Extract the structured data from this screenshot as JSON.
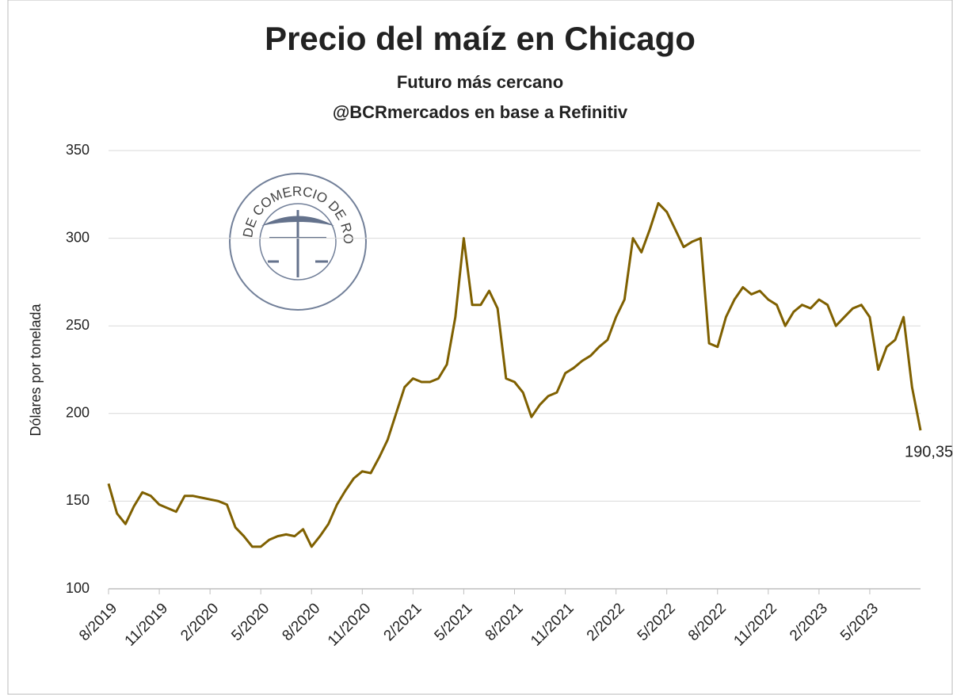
{
  "chart_data": {
    "type": "line",
    "title": "Precio del maíz en Chicago",
    "subtitle": [
      "Futuro más cercano",
      "@BCRmercados en base a Refinitiv"
    ],
    "y_label": "Dólares por tonelada",
    "logo_text": "BOLSA DE COMERCIO DE ROSARIO",
    "categories": [
      "8/2019",
      null,
      null,
      null,
      null,
      null,
      "11/2019",
      null,
      null,
      null,
      null,
      null,
      "2/2020",
      null,
      null,
      null,
      null,
      null,
      "5/2020",
      null,
      null,
      null,
      null,
      null,
      "8/2020",
      null,
      null,
      null,
      null,
      null,
      "11/2020",
      null,
      null,
      null,
      null,
      null,
      "2/2021",
      null,
      null,
      null,
      null,
      null,
      "5/2021",
      null,
      null,
      null,
      null,
      null,
      "8/2021",
      null,
      null,
      null,
      null,
      null,
      "11/2021",
      null,
      null,
      null,
      null,
      null,
      "2/2022",
      null,
      null,
      null,
      null,
      null,
      "5/2022",
      null,
      null,
      null,
      null,
      null,
      "8/2022",
      null,
      null,
      null,
      null,
      null,
      "11/2022",
      null,
      null,
      null,
      null,
      null,
      "2/2023",
      null,
      null,
      null,
      null,
      null,
      "5/2023",
      null,
      null,
      null,
      null,
      null,
      null
    ],
    "series": [
      {
        "name": "Maíz",
        "color": "#7f6000",
        "values": [
          160,
          143,
          137,
          147,
          155,
          153,
          148,
          146,
          144,
          153,
          153,
          152,
          151,
          150,
          148,
          135,
          130,
          124,
          124,
          128,
          130,
          131,
          130,
          134,
          124,
          130,
          137,
          148,
          156,
          163,
          167,
          166,
          175,
          185,
          200,
          215,
          220,
          218,
          218,
          220,
          228,
          255,
          300,
          262,
          262,
          270,
          260,
          220,
          218,
          212,
          198,
          205,
          210,
          212,
          223,
          226,
          230,
          233,
          238,
          242,
          255,
          265,
          300,
          292,
          305,
          320,
          315,
          305,
          295,
          298,
          300,
          240,
          238,
          255,
          265,
          272,
          268,
          270,
          265,
          262,
          250,
          258,
          262,
          260,
          265,
          262,
          250,
          255,
          260,
          262,
          255,
          225,
          238,
          242,
          255,
          215,
          190.35
        ],
        "value_labels": [
          null,
          null,
          null,
          null,
          null,
          null,
          null,
          null,
          null,
          null,
          null,
          null,
          null,
          null,
          null,
          null,
          null,
          null,
          null,
          null,
          null,
          null,
          null,
          null,
          null,
          null,
          null,
          null,
          null,
          null,
          null,
          null,
          null,
          null,
          null,
          null,
          null,
          null,
          null,
          null,
          null,
          null,
          null,
          null,
          null,
          null,
          null,
          null,
          null,
          null,
          null,
          null,
          null,
          null,
          null,
          null,
          null,
          null,
          null,
          null,
          null,
          null,
          null,
          null,
          null,
          null,
          null,
          null,
          null,
          null,
          null,
          null,
          null,
          null,
          null,
          null,
          null,
          null,
          null,
          null,
          null,
          null,
          null,
          null,
          null,
          null,
          null,
          null,
          null,
          null,
          null,
          null,
          null,
          null,
          null,
          null,
          "190,35"
        ]
      }
    ],
    "ylim": [
      100,
      350
    ],
    "yticks": [
      100,
      150,
      200,
      250,
      300,
      350
    ],
    "grid": true
  }
}
